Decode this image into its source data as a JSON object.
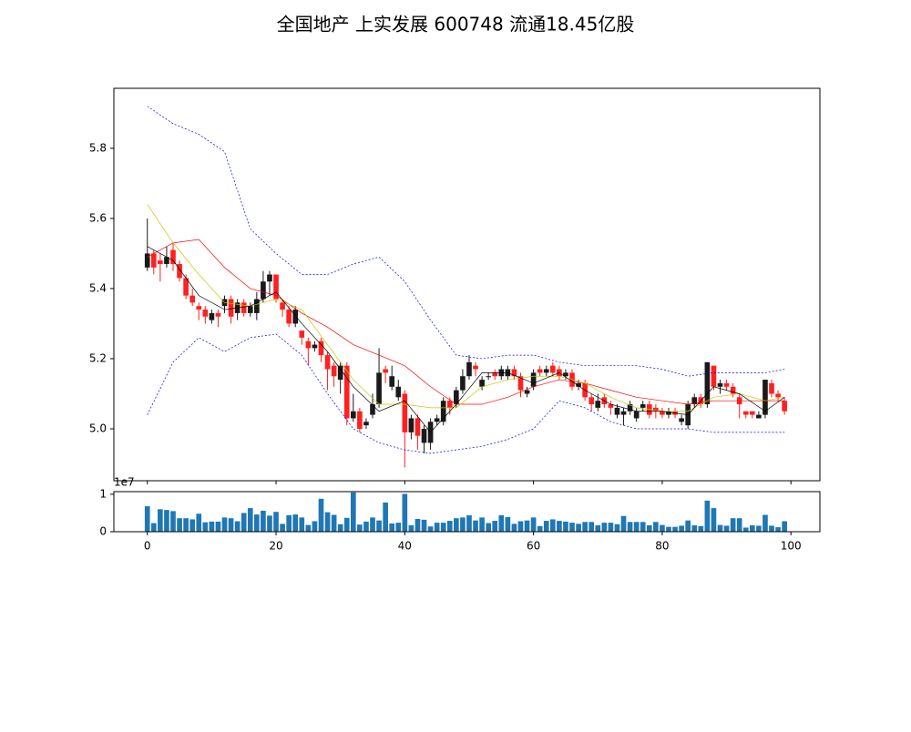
{
  "chart_data": {
    "type": "candlestick",
    "title": "全国地产 上实发展 600748 流通18.45亿股",
    "x": [
      0,
      1,
      2,
      3,
      4,
      5,
      6,
      7,
      8,
      9,
      10,
      11,
      12,
      13,
      14,
      15,
      16,
      17,
      18,
      19,
      20,
      21,
      22,
      23,
      24,
      25,
      26,
      27,
      28,
      29,
      30,
      31,
      32,
      33,
      34,
      35,
      36,
      37,
      38,
      39,
      40,
      41,
      42,
      43,
      44,
      45,
      46,
      47,
      48,
      49,
      50,
      51,
      52,
      53,
      54,
      55,
      56,
      57,
      58,
      59,
      60,
      61,
      62,
      63,
      64,
      65,
      66,
      67,
      68,
      69,
      70,
      71,
      72,
      73,
      74,
      75,
      76,
      77,
      78,
      79,
      80,
      81,
      82,
      83,
      84,
      85,
      86,
      87,
      88,
      89,
      90,
      91,
      92,
      93,
      94,
      95,
      96,
      97,
      98,
      99
    ],
    "open": [
      5.46,
      5.5,
      5.48,
      5.47,
      5.51,
      5.47,
      5.43,
      5.38,
      5.35,
      5.34,
      5.31,
      5.33,
      5.35,
      5.37,
      5.33,
      5.36,
      5.33,
      5.33,
      5.37,
      5.42,
      5.44,
      5.36,
      5.34,
      5.3,
      5.28,
      5.25,
      5.23,
      5.25,
      5.21,
      5.18,
      5.14,
      5.18,
      5.03,
      5.05,
      5.01,
      5.04,
      5.07,
      5.17,
      5.12,
      5.09,
      5.1,
      4.99,
      5.03,
      4.96,
      4.96,
      5.02,
      5.02,
      5.08,
      5.07,
      5.11,
      5.15,
      5.18,
      5.12,
      5.15,
      5.16,
      5.15,
      5.15,
      5.17,
      5.15,
      5.1,
      5.12,
      5.17,
      5.16,
      5.18,
      5.17,
      5.15,
      5.16,
      5.12,
      5.13,
      5.09,
      5.06,
      5.09,
      5.07,
      5.04,
      5.04,
      5.05,
      5.03,
      5.06,
      5.07,
      5.06,
      5.05,
      5.04,
      5.05,
      5.02,
      5.01,
      5.07,
      5.09,
      5.07,
      5.18,
      5.12,
      5.13,
      5.12,
      5.09,
      5.05,
      5.05,
      5.03,
      5.04,
      5.13,
      5.1,
      5.08
    ],
    "high": [
      5.6,
      5.51,
      5.5,
      5.52,
      5.53,
      5.48,
      5.44,
      5.4,
      5.36,
      5.35,
      5.34,
      5.34,
      5.38,
      5.38,
      5.37,
      5.37,
      5.36,
      5.39,
      5.45,
      5.45,
      5.44,
      5.37,
      5.35,
      5.35,
      5.28,
      5.26,
      5.25,
      5.26,
      5.22,
      5.19,
      5.19,
      5.19,
      5.1,
      5.06,
      5.03,
      5.1,
      5.23,
      5.18,
      5.18,
      5.14,
      5.11,
      5.04,
      5.04,
      5.01,
      5.03,
      5.04,
      5.09,
      5.09,
      5.12,
      5.17,
      5.21,
      5.19,
      5.15,
      5.16,
      5.17,
      5.18,
      5.18,
      5.18,
      5.16,
      5.12,
      5.17,
      5.18,
      5.18,
      5.19,
      5.18,
      5.17,
      5.17,
      5.14,
      5.14,
      5.1,
      5.1,
      5.1,
      5.08,
      5.07,
      5.06,
      5.08,
      5.06,
      5.08,
      5.08,
      5.07,
      5.06,
      5.06,
      5.06,
      5.04,
      5.08,
      5.1,
      5.1,
      5.19,
      5.18,
      5.14,
      5.14,
      5.13,
      5.1,
      5.05,
      5.05,
      5.05,
      5.14,
      5.14,
      5.11,
      5.09
    ],
    "low": [
      5.45,
      5.44,
      5.42,
      5.46,
      5.45,
      5.42,
      5.37,
      5.35,
      5.31,
      5.3,
      5.3,
      5.29,
      5.33,
      5.3,
      5.31,
      5.32,
      5.32,
      5.31,
      5.36,
      5.38,
      5.36,
      5.32,
      5.29,
      5.29,
      5.24,
      5.18,
      5.22,
      5.19,
      5.11,
      5.12,
      5.1,
      5.01,
      5.02,
      4.99,
      5.0,
      5.03,
      5.06,
      5.13,
      5.11,
      5.08,
      4.89,
      4.97,
      4.94,
      4.93,
      4.94,
      5.01,
      5.01,
      5.04,
      5.06,
      5.1,
      5.14,
      5.15,
      5.11,
      5.14,
      5.14,
      5.14,
      5.14,
      5.14,
      5.09,
      5.09,
      5.11,
      5.15,
      5.15,
      5.15,
      5.14,
      5.14,
      5.11,
      5.11,
      5.08,
      5.05,
      5.05,
      5.06,
      5.04,
      5.03,
      5.01,
      5.04,
      5.02,
      5.05,
      5.03,
      5.03,
      5.03,
      5.03,
      5.03,
      5.01,
      5.0,
      5.06,
      5.06,
      5.06,
      5.11,
      5.1,
      5.11,
      5.09,
      5.03,
      5.03,
      5.03,
      5.03,
      5.03,
      5.09,
      5.08,
      5.04
    ],
    "close": [
      5.5,
      5.46,
      5.47,
      5.49,
      5.47,
      5.43,
      5.38,
      5.36,
      5.34,
      5.32,
      5.33,
      5.32,
      5.37,
      5.32,
      5.36,
      5.33,
      5.35,
      5.37,
      5.42,
      5.44,
      5.37,
      5.34,
      5.3,
      5.34,
      5.26,
      5.23,
      5.24,
      5.21,
      5.17,
      5.15,
      5.18,
      5.03,
      5.05,
      5.0,
      5.02,
      5.07,
      5.16,
      5.16,
      5.15,
      5.12,
      4.99,
      5.03,
      4.98,
      5.0,
      5.02,
      5.03,
      5.08,
      5.06,
      5.11,
      5.15,
      5.19,
      5.17,
      5.14,
      5.15,
      5.15,
      5.17,
      5.17,
      5.15,
      5.11,
      5.11,
      5.16,
      5.16,
      5.17,
      5.16,
      5.15,
      5.16,
      5.12,
      5.13,
      5.09,
      5.07,
      5.08,
      5.07,
      5.06,
      5.06,
      5.05,
      5.07,
      5.05,
      5.07,
      5.04,
      5.05,
      5.04,
      5.05,
      5.04,
      5.03,
      5.07,
      5.09,
      5.07,
      5.19,
      5.12,
      5.13,
      5.12,
      5.1,
      5.07,
      5.04,
      5.04,
      5.04,
      5.14,
      5.1,
      5.09,
      5.05
    ],
    "up_color": "#1a1a1a",
    "down_color": "#ff2020",
    "lines": [
      {
        "color": "#0000ff",
        "dashed": true,
        "x": [
          0,
          4,
          8,
          12,
          16,
          20,
          24,
          28,
          32,
          36,
          40,
          44,
          48,
          52,
          56,
          60,
          64,
          68,
          72,
          76,
          80,
          84,
          88,
          92,
          96,
          99
        ],
        "values": [
          5.92,
          5.87,
          5.84,
          5.79,
          5.57,
          5.5,
          5.44,
          5.44,
          5.47,
          5.49,
          5.42,
          5.31,
          5.21,
          5.2,
          5.21,
          5.21,
          5.19,
          5.18,
          5.18,
          5.18,
          5.17,
          5.15,
          5.16,
          5.16,
          5.16,
          5.17
        ]
      },
      {
        "color": "#0000ff",
        "dashed": true,
        "x": [
          0,
          4,
          8,
          12,
          16,
          20,
          24,
          28,
          32,
          36,
          40,
          44,
          48,
          52,
          56,
          60,
          64,
          68,
          72,
          76,
          80,
          84,
          88,
          92,
          96,
          99
        ],
        "values": [
          5.04,
          5.19,
          5.26,
          5.22,
          5.26,
          5.27,
          5.21,
          5.1,
          5.0,
          4.96,
          4.94,
          4.93,
          4.94,
          4.95,
          4.97,
          5.0,
          5.08,
          5.06,
          5.02,
          5.0,
          5.0,
          5.0,
          4.99,
          4.99,
          4.99,
          4.99
        ]
      },
      {
        "color": "#ff0000",
        "dashed": false,
        "x": [
          0,
          4,
          8,
          12,
          16,
          20,
          24,
          28,
          32,
          36,
          40,
          44,
          48,
          52,
          56,
          60,
          64,
          68,
          72,
          76,
          80,
          84,
          88,
          92,
          96,
          99
        ],
        "values": [
          5.49,
          5.53,
          5.54,
          5.46,
          5.4,
          5.38,
          5.33,
          5.29,
          5.24,
          5.21,
          5.18,
          5.12,
          5.07,
          5.07,
          5.09,
          5.12,
          5.14,
          5.13,
          5.11,
          5.09,
          5.08,
          5.07,
          5.08,
          5.08,
          5.08,
          5.08
        ]
      },
      {
        "color": "#c8c800",
        "dashed": false,
        "x": [
          0,
          4,
          8,
          12,
          16,
          20,
          24,
          28,
          32,
          36,
          40,
          44,
          48,
          52,
          56,
          60,
          64,
          68,
          72,
          76,
          80,
          84,
          88,
          92,
          96,
          99
        ],
        "values": [
          5.64,
          5.53,
          5.44,
          5.36,
          5.35,
          5.37,
          5.34,
          5.24,
          5.14,
          5.07,
          5.07,
          5.06,
          5.06,
          5.12,
          5.14,
          5.15,
          5.15,
          5.13,
          5.09,
          5.06,
          5.05,
          5.05,
          5.09,
          5.1,
          5.08,
          5.09
        ]
      },
      {
        "color": "#000000",
        "dashed": false,
        "x": [
          0,
          4,
          8,
          12,
          16,
          20,
          24,
          28,
          32,
          36,
          40,
          44,
          48,
          52,
          56,
          60,
          64,
          68,
          72,
          76,
          80,
          84,
          88,
          92,
          96,
          99
        ],
        "values": [
          5.52,
          5.48,
          5.38,
          5.34,
          5.35,
          5.39,
          5.3,
          5.22,
          5.12,
          5.05,
          5.08,
          4.99,
          5.07,
          5.16,
          5.16,
          5.13,
          5.16,
          5.11,
          5.07,
          5.05,
          5.05,
          5.04,
          5.12,
          5.1,
          5.05,
          5.09
        ]
      }
    ],
    "xlim": [
      -5.2,
      104.5
    ],
    "xticks": [
      0,
      20,
      40,
      60,
      80,
      100
    ],
    "ylim": [
      4.852,
      5.971
    ],
    "yticks": [
      {
        "value": 5,
        "label": "5.0"
      },
      5.2,
      5.4,
      5.6,
      5.8
    ],
    "volume": {
      "color": "#1f77b4",
      "offset_label": "1e7",
      "ylim": [
        0,
        1.07
      ],
      "yticks": [
        0,
        1
      ],
      "values": [
        0.68,
        0.23,
        0.6,
        0.58,
        0.55,
        0.36,
        0.36,
        0.33,
        0.48,
        0.25,
        0.27,
        0.27,
        0.38,
        0.36,
        0.28,
        0.5,
        0.63,
        0.46,
        0.56,
        0.43,
        0.53,
        0.21,
        0.44,
        0.46,
        0.38,
        0.18,
        0.28,
        0.88,
        0.52,
        0.45,
        0.2,
        0.37,
        1.05,
        0.19,
        0.27,
        0.38,
        0.3,
        0.78,
        0.22,
        0.24,
        1.01,
        0.17,
        0.34,
        0.32,
        0.14,
        0.24,
        0.24,
        0.29,
        0.36,
        0.38,
        0.44,
        0.3,
        0.38,
        0.23,
        0.29,
        0.44,
        0.39,
        0.21,
        0.28,
        0.3,
        0.38,
        0.15,
        0.29,
        0.33,
        0.29,
        0.27,
        0.24,
        0.21,
        0.26,
        0.26,
        0.17,
        0.24,
        0.24,
        0.2,
        0.42,
        0.26,
        0.26,
        0.26,
        0.17,
        0.26,
        0.18,
        0.13,
        0.13,
        0.16,
        0.3,
        0.17,
        0.15,
        0.83,
        0.63,
        0.18,
        0.16,
        0.36,
        0.36,
        0.11,
        0.17,
        0.16,
        0.45,
        0.16,
        0.12,
        0.28
      ]
    }
  }
}
